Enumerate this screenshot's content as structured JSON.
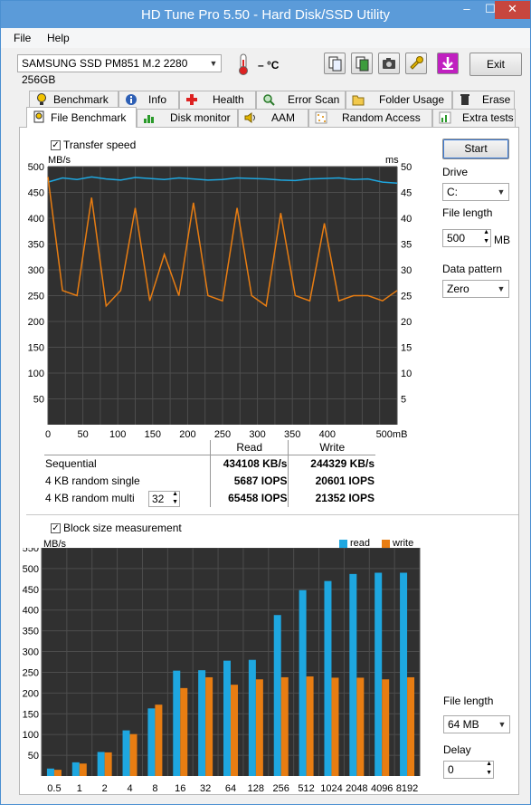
{
  "window": {
    "title": "HD Tune Pro 5.50 - Hard Disk/SSD Utility",
    "controls": [
      "–",
      "☐",
      "✕"
    ]
  },
  "menu": [
    "File",
    "Help"
  ],
  "toolbar": {
    "drive": "SAMSUNG SSD PM851 M.2 2280 256GB",
    "temperature": "– °C",
    "exit_label": "Exit"
  },
  "tabs_top": [
    "Benchmark",
    "Info",
    "Health",
    "Error Scan",
    "Folder Usage",
    "Erase"
  ],
  "tabs_bottom": [
    "File Benchmark",
    "Disk monitor",
    "AAM",
    "Random Access",
    "Extra tests"
  ],
  "transfer": {
    "checkbox_label": "Transfer speed",
    "unit_left": "MB/s",
    "unit_right": "ms",
    "y_left": [
      "500",
      "450",
      "400",
      "350",
      "300",
      "250",
      "200",
      "150",
      "100",
      "50"
    ],
    "y_right": [
      "50",
      "45",
      "40",
      "35",
      "30",
      "25",
      "20",
      "15",
      "10",
      "5"
    ],
    "x_ticks": [
      "0",
      "50",
      "100",
      "150",
      "200",
      "250",
      "300",
      "350",
      "400",
      "500mB"
    ]
  },
  "results": {
    "col_read": "Read",
    "col_write": "Write",
    "rows": [
      {
        "label": "Sequential",
        "read": "434108 KB/s",
        "write": "244329 KB/s"
      },
      {
        "label": "4 KB random single",
        "read": "5687 IOPS",
        "write": "20601 IOPS"
      },
      {
        "label": "4 KB random multi",
        "read": "65458 IOPS",
        "write": "21352 IOPS"
      }
    ],
    "queue_depth": "32"
  },
  "side": {
    "start_label": "Start",
    "drive_label": "Drive",
    "drive_value": "C:",
    "file_length_label": "File length",
    "file_length_value": "500",
    "file_length_unit": "MB",
    "data_pattern_label": "Data pattern",
    "data_pattern_value": "Zero",
    "block_file_length_label": "File length",
    "block_file_length_value": "64 MB",
    "delay_label": "Delay",
    "delay_value": "0"
  },
  "block": {
    "checkbox_label": "Block size measurement",
    "unit": "MB/s",
    "legend_read": "read",
    "legend_write": "write",
    "y_ticks": [
      "550",
      "500",
      "450",
      "400",
      "350",
      "300",
      "250",
      "200",
      "150",
      "100",
      "50"
    ]
  },
  "colors": {
    "read": "#1ea7e0",
    "write": "#e87d12",
    "plot_bg": "#303030",
    "grid": "#4d4d4d",
    "title_bar": "#5b9bd9"
  },
  "chart_data": [
    {
      "type": "line",
      "title": "Transfer speed",
      "xlabel": "mB",
      "ylabel": "MB/s",
      "ylabel_right": "ms",
      "xlim": [
        0,
        500
      ],
      "ylim": [
        0,
        500
      ],
      "ylim_right": [
        0,
        50
      ],
      "series": [
        {
          "name": "read",
          "values": [
            470,
            478,
            475,
            480,
            476,
            474,
            479,
            477,
            475,
            478,
            476,
            474,
            475,
            478,
            477,
            476,
            474,
            473,
            476,
            477,
            478,
            475,
            476,
            470,
            468
          ]
        },
        {
          "name": "write",
          "values": [
            480,
            260,
            250,
            440,
            230,
            260,
            420,
            240,
            330,
            250,
            430,
            250,
            240,
            420,
            250,
            230,
            410,
            250,
            240,
            390,
            240,
            250,
            250,
            240,
            260
          ]
        }
      ],
      "grid": true
    },
    {
      "type": "bar",
      "title": "Block size measurement",
      "categories": [
        "0.5",
        "1",
        "2",
        "4",
        "8",
        "16",
        "32",
        "64",
        "128",
        "256",
        "512",
        "1024",
        "2048",
        "4096",
        "8192"
      ],
      "series": [
        {
          "name": "read",
          "values": [
            18,
            33,
            58,
            110,
            163,
            254,
            255,
            278,
            280,
            388,
            448,
            470,
            487,
            490,
            490
          ]
        },
        {
          "name": "write",
          "values": [
            15,
            30,
            57,
            101,
            172,
            212,
            238,
            220,
            233,
            238,
            240,
            237,
            237,
            233,
            238
          ]
        }
      ],
      "ylabel": "MB/s",
      "ylim": [
        0,
        550
      ],
      "legend": "top-right",
      "grid": true
    }
  ]
}
